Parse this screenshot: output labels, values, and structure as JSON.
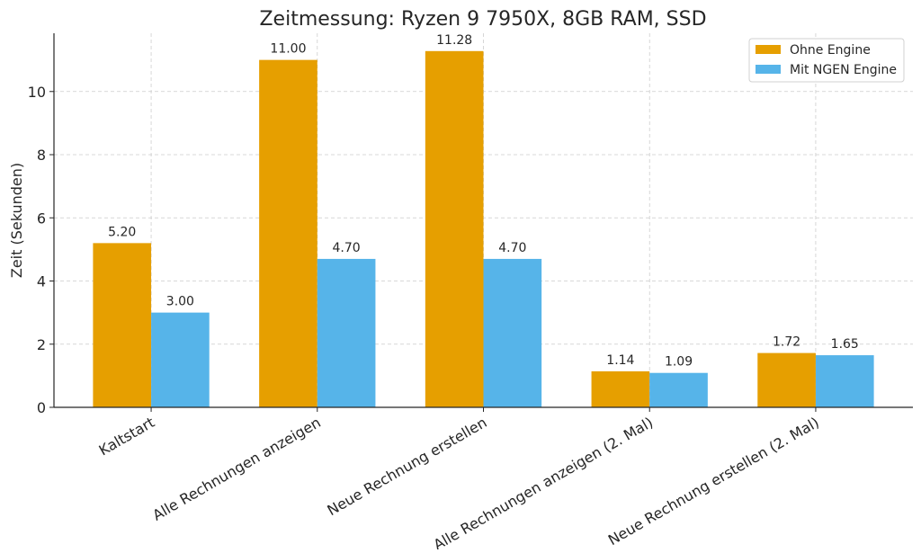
{
  "chart_data": {
    "type": "bar",
    "title": "Zeitmessung: Ryzen 9 7950X, 8GB RAM, SSD",
    "xlabel": "",
    "ylabel": "Zeit (Sekunden)",
    "categories": [
      "Kaltstart",
      "Alle Rechnungen anzeigen",
      "Neue Rechnung erstellen",
      "Alle Rechnungen anzeigen (2. Mal)",
      "Neue Rechnung erstellen (2. Mal)"
    ],
    "series": [
      {
        "name": "Ohne Engine",
        "color": "#E69F00",
        "values": [
          5.2,
          11.0,
          11.28,
          1.14,
          1.72
        ],
        "labels": [
          "5.20",
          "11.00",
          "11.28",
          "1.14",
          "1.72"
        ]
      },
      {
        "name": "Mit NGEN Engine",
        "color": "#56B4E9",
        "values": [
          3.0,
          4.7,
          4.7,
          1.09,
          1.65
        ],
        "labels": [
          "3.00",
          "4.70",
          "4.70",
          "1.09",
          "1.65"
        ]
      }
    ],
    "ylim": [
      0,
      11.844
    ],
    "yticks": [
      0,
      2,
      4,
      6,
      8,
      10
    ],
    "ytick_labels": [
      "0",
      "2",
      "4",
      "6",
      "8",
      "10"
    ],
    "grid": true,
    "legend_position": "top-right"
  }
}
